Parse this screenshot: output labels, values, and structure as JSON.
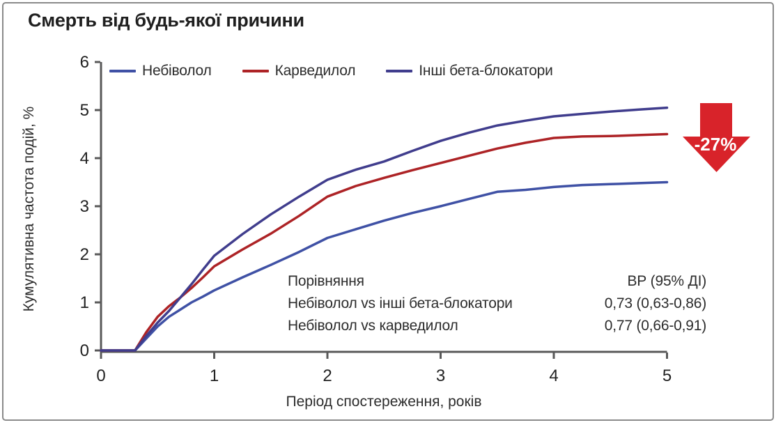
{
  "title": "Смерть від будь-якої причини",
  "annotation": {
    "label": "-27%",
    "color": "#d8232a"
  },
  "stats_table": {
    "header": {
      "comparison": "Порівняння",
      "value": "ВР (95% ДІ)"
    },
    "rows": [
      {
        "comparison": "Небіволол vs інші бета-блокатори",
        "value": "0,73 (0,63-0,86)"
      },
      {
        "comparison": "Небіволол vs карведилол",
        "value": "0,77 (0,66-0,91)"
      }
    ]
  },
  "chart_data": {
    "type": "line",
    "title": "Смерть від будь-якої причини",
    "xlabel": "Період спостереження, років",
    "ylabel": "Кумулятивна частота подій, %",
    "xlim": [
      0,
      5
    ],
    "ylim": [
      0,
      6
    ],
    "x_ticks": [
      0,
      1,
      2,
      3,
      4,
      5
    ],
    "y_ticks": [
      0,
      1,
      2,
      3,
      4,
      5,
      6
    ],
    "grid": false,
    "legend_position": "top-inside",
    "axis_color": "#595959",
    "x": [
      0,
      0.3,
      0.4,
      0.5,
      0.6,
      0.7,
      0.8,
      0.9,
      1.0,
      1.25,
      1.5,
      1.75,
      2.0,
      2.25,
      2.5,
      2.75,
      3.0,
      3.25,
      3.5,
      3.75,
      4.0,
      4.25,
      4.5,
      4.75,
      5.0
    ],
    "series": [
      {
        "name": "Небіволол",
        "color": "#3f51a5",
        "values": [
          0,
          0,
          0.25,
          0.5,
          0.7,
          0.85,
          1.0,
          1.12,
          1.25,
          1.52,
          1.78,
          2.05,
          2.34,
          2.52,
          2.7,
          2.86,
          3.0,
          3.15,
          3.3,
          3.34,
          3.4,
          3.44,
          3.46,
          3.48,
          3.5
        ]
      },
      {
        "name": "Карведилол",
        "color": "#ad2326",
        "values": [
          0,
          0,
          0.38,
          0.7,
          0.92,
          1.1,
          1.3,
          1.52,
          1.75,
          2.1,
          2.43,
          2.8,
          3.2,
          3.42,
          3.59,
          3.75,
          3.9,
          4.05,
          4.2,
          4.32,
          4.42,
          4.45,
          4.46,
          4.48,
          4.5
        ]
      },
      {
        "name": "Інші бета-блокатори",
        "color": "#403d8d",
        "values": [
          0,
          0,
          0.3,
          0.58,
          0.82,
          1.1,
          1.38,
          1.68,
          1.97,
          2.42,
          2.83,
          3.2,
          3.55,
          3.76,
          3.93,
          4.15,
          4.36,
          4.53,
          4.68,
          4.78,
          4.87,
          4.92,
          4.97,
          5.01,
          5.05
        ]
      }
    ]
  }
}
